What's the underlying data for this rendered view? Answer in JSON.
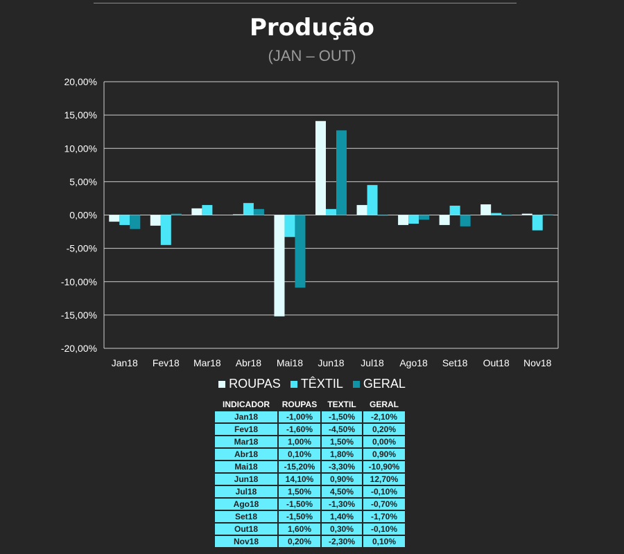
{
  "title": "Produção",
  "subtitle": "(JAN – OUT)",
  "colors": {
    "roupas": "#e0fcfd",
    "textil": "#4ae6f7",
    "geral": "#1193a6",
    "grid": "#d0d0d0",
    "background": "#262626",
    "table_cell": "#66eeff"
  },
  "chart_data": {
    "type": "bar",
    "categories": [
      "Jan18",
      "Fev18",
      "Mar18",
      "Abr18",
      "Mai18",
      "Jun18",
      "Jul18",
      "Ago18",
      "Set18",
      "Out18",
      "Nov18"
    ],
    "series": [
      {
        "name": "ROUPAS",
        "values": [
          -1.0,
          -1.6,
          1.0,
          0.1,
          -15.2,
          14.1,
          1.5,
          -1.5,
          -1.5,
          1.6,
          0.2
        ]
      },
      {
        "name": "TÊXTIL",
        "values": [
          -1.5,
          -4.5,
          1.5,
          1.8,
          -3.3,
          0.9,
          4.5,
          -1.3,
          1.4,
          0.3,
          -2.3
        ]
      },
      {
        "name": "GERAL",
        "values": [
          -2.1,
          0.2,
          0.0,
          0.9,
          -10.9,
          12.7,
          -0.1,
          -0.7,
          -1.7,
          -0.1,
          0.1
        ]
      }
    ],
    "yticks": [
      "20,00%",
      "15,00%",
      "10,00%",
      "5,00%",
      "0,00%",
      "-5,00%",
      "-10,00%",
      "-15,00%",
      "-20,00%"
    ],
    "ylim": [
      -20,
      20
    ],
    "ystep": 5,
    "grid": true,
    "legend": "bottom"
  },
  "table": {
    "headers": [
      "INDICADOR",
      "ROUPAS",
      "TEXTIL",
      "GERAL"
    ],
    "rows": [
      [
        "Jan18",
        "-1,00%",
        "-1,50%",
        "-2,10%"
      ],
      [
        "Fev18",
        "-1,60%",
        "-4,50%",
        "0,20%"
      ],
      [
        "Mar18",
        "1,00%",
        "1,50%",
        "0,00%"
      ],
      [
        "Abr18",
        "0,10%",
        "1,80%",
        "0,90%"
      ],
      [
        "Mai18",
        "-15,20%",
        "-3,30%",
        "-10,90%"
      ],
      [
        "Jun18",
        "14,10%",
        "0,90%",
        "12,70%"
      ],
      [
        "Jul18",
        "1,50%",
        "4,50%",
        "-0,10%"
      ],
      [
        "Ago18",
        "-1,50%",
        "-1,30%",
        "-0,70%"
      ],
      [
        "Set18",
        "-1,50%",
        "1,40%",
        "-1,70%"
      ],
      [
        "Out18",
        "1,60%",
        "0,30%",
        "-0,10%"
      ],
      [
        "Nov18",
        "0,20%",
        "-2,30%",
        "0,10%"
      ]
    ]
  }
}
